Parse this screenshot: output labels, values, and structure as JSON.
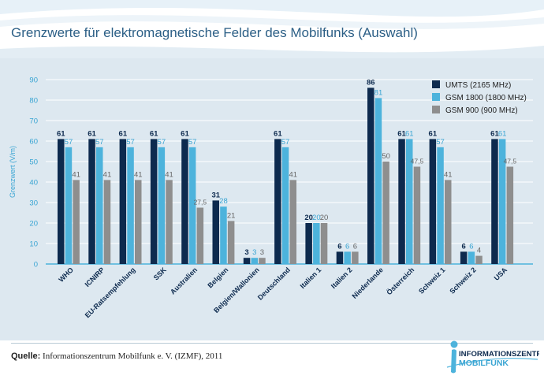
{
  "title": "Grenzwerte für elektromagnetische Felder des Mobilfunks (Auswahl)",
  "source": {
    "label": "Quelle:",
    "text": "Informationszentrum Mobilfunk e. V. (IZMF), 2011"
  },
  "logo": {
    "line1": "INFORMATIONSZENTRUM",
    "line2": "MOBILFUNK"
  },
  "chart_data": {
    "type": "bar",
    "title": "Grenzwerte für elektromagnetische Felder des Mobilfunks (Auswahl)",
    "xlabel": "",
    "ylabel": "Grenzwert (V/m)",
    "ylim": [
      0,
      90
    ],
    "yticks": [
      0,
      10,
      20,
      30,
      40,
      50,
      60,
      70,
      80,
      90
    ],
    "grid": true,
    "legend_position": "top-right",
    "categories": [
      "WHO",
      "ICNIRP",
      "EU-Ratsempfehlung",
      "SSK",
      "Australien",
      "Belgien",
      "Belgien/Wallonien",
      "Deutschland",
      "Italien 1",
      "Italien 2",
      "Niederlande",
      "Österreich",
      "Schweiz 1",
      "Schweiz 2",
      "USA"
    ],
    "series": [
      {
        "name": "UMTS (2165 MHz)",
        "color": "#0d2a4e",
        "labelColor": "#0d2a4e",
        "values": [
          61,
          61,
          61,
          61,
          61,
          31,
          3,
          61,
          20,
          6,
          86,
          61,
          61,
          6,
          61
        ],
        "labels": [
          "61",
          "61",
          "61",
          "61",
          "61",
          "31",
          "3",
          "61",
          "20",
          "6",
          "86",
          "61",
          "61",
          "6",
          "61"
        ]
      },
      {
        "name": "GSM 1800 (1800 MHz)",
        "color": "#4db3dc",
        "labelColor": "#3aa5d3",
        "values": [
          57,
          57,
          57,
          57,
          57,
          28,
          3,
          57,
          20,
          6,
          81,
          61,
          57,
          6,
          61
        ],
        "labels": [
          "57",
          "57",
          "57",
          "57",
          "57",
          "28",
          "3",
          "57",
          "20",
          "6",
          "81",
          "61",
          "57",
          "6",
          "61"
        ]
      },
      {
        "name": "GSM 900 (900 MHz)",
        "color": "#8e8e8e",
        "labelColor": "#666666",
        "values": [
          41,
          41,
          41,
          41,
          27.5,
          21,
          3,
          41,
          20,
          6,
          50,
          47.5,
          41,
          4,
          47.5
        ],
        "labels": [
          "41",
          "41",
          "41",
          "41",
          "27,5",
          "21",
          "3",
          "41",
          "20",
          "6",
          "50",
          "47,5",
          "41",
          "4",
          "47,5"
        ]
      }
    ]
  }
}
